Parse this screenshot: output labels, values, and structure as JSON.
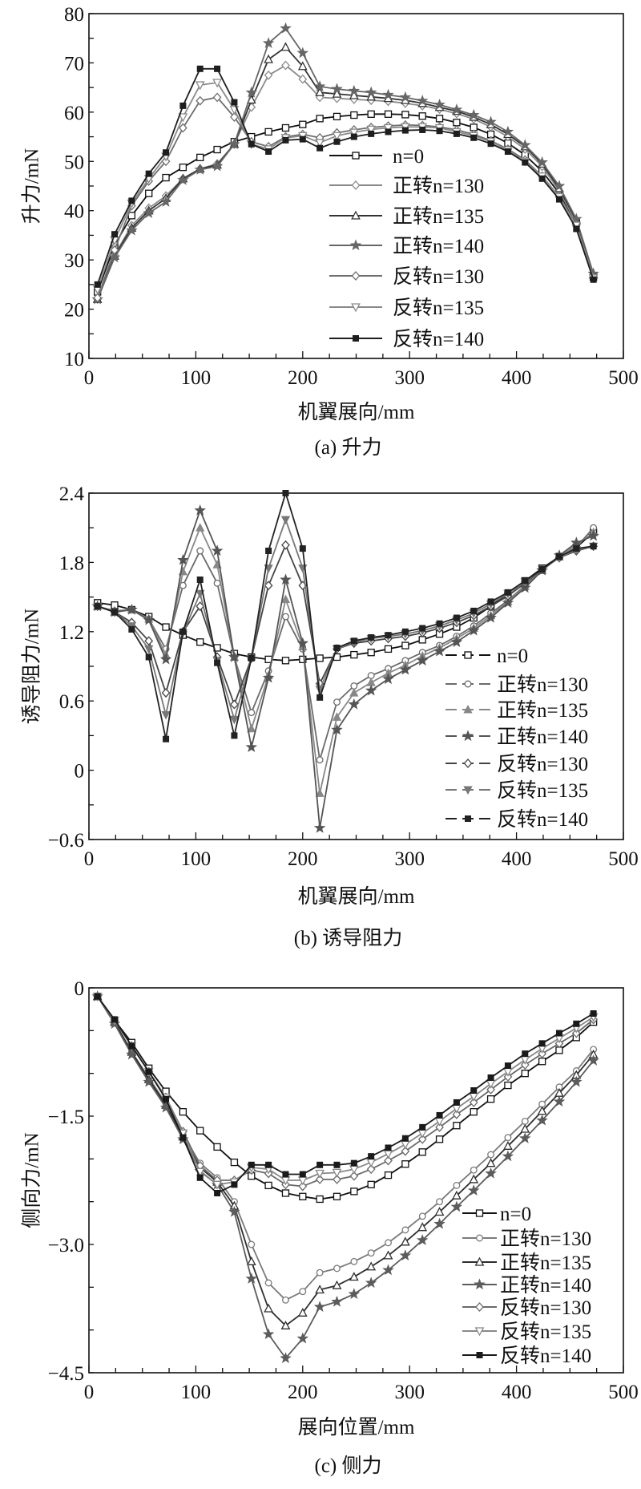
{
  "chart_data": [
    {
      "type": "line",
      "caption": "(a) 升力",
      "xlabel": "机翼展向/mm",
      "ylabel": "升力/mN",
      "xlim": [
        0,
        500
      ],
      "ylim": [
        10,
        80
      ],
      "xticks": [
        "0",
        "100",
        "200",
        "300",
        "400",
        "500"
      ],
      "yticks": [
        "10",
        "20",
        "30",
        "40",
        "50",
        "60",
        "70",
        "80"
      ],
      "legend_position": "center-right",
      "x": [
        8,
        24,
        40,
        56,
        72,
        88,
        104,
        120,
        136,
        152,
        168,
        184,
        200,
        216,
        232,
        248,
        264,
        280,
        296,
        312,
        328,
        344,
        360,
        376,
        392,
        408,
        424,
        440,
        456,
        472
      ],
      "series": [
        {
          "name": "n=0",
          "color": "#111111",
          "marker": "square",
          "values": [
            23.5,
            33,
            39,
            43.5,
            46.7,
            48.8,
            50.8,
            52.4,
            54,
            55,
            56,
            56.8,
            57.5,
            58.7,
            59.1,
            59.4,
            59.6,
            59.6,
            59.5,
            59.2,
            58.7,
            57.9,
            56.9,
            55.5,
            53.7,
            51.3,
            48,
            43.5,
            37.5,
            26.5
          ]
        },
        {
          "name": "正转n=130",
          "color": "#8a8a8a",
          "marker": "diamond",
          "values": [
            22,
            31,
            37,
            40.5,
            43,
            46.5,
            48.5,
            49.5,
            53.5,
            61,
            67.5,
            69.5,
            66.7,
            63,
            62.8,
            62.6,
            62.4,
            62.2,
            61.8,
            61.3,
            60.6,
            59.7,
            58.6,
            57,
            55,
            52.5,
            49,
            44,
            37.5,
            26.8
          ]
        },
        {
          "name": "正转n=135",
          "color": "#333333",
          "marker": "triangle",
          "values": [
            22,
            30.8,
            36.5,
            40,
            42.5,
            46.5,
            48.5,
            49.3,
            53.5,
            62.5,
            70.7,
            73.2,
            69.3,
            64,
            63.7,
            63.4,
            63.1,
            62.8,
            62.4,
            61.8,
            61,
            60.2,
            59,
            57.5,
            55.5,
            53,
            49.5,
            44.5,
            38,
            27
          ]
        },
        {
          "name": "正转n=140",
          "color": "#666666",
          "marker": "star",
          "values": [
            22,
            30.5,
            36,
            39.5,
            41.8,
            46.2,
            48.3,
            49,
            53.5,
            64,
            74,
            77,
            72,
            65.2,
            64.7,
            64.3,
            64,
            63.5,
            63,
            62.3,
            61.5,
            60.5,
            59.4,
            58,
            56,
            53.3,
            49.8,
            45,
            38.3,
            27.2
          ]
        },
        {
          "name": "反转n=130",
          "color": "#6e6e6e",
          "marker": "diamond",
          "values": [
            22.3,
            32,
            41,
            46,
            50,
            56.8,
            62.3,
            63,
            59,
            54,
            53,
            55,
            55.5,
            54.8,
            55.8,
            56.4,
            56.9,
            57.2,
            57.4,
            57.3,
            57,
            56.4,
            55.5,
            54.2,
            52.5,
            50.3,
            47,
            42.8,
            37,
            26.5
          ]
        },
        {
          "name": "反转n=135",
          "color": "#8a8a8a",
          "marker": "down-triangle",
          "values": [
            24,
            34,
            41.5,
            46.5,
            51,
            59,
            65.5,
            66,
            60.5,
            53.5,
            52.5,
            54.8,
            55.2,
            53.8,
            55.2,
            55.9,
            56.5,
            56.8,
            57,
            57,
            56.8,
            56,
            55.2,
            54,
            52.3,
            50,
            47,
            42.8,
            37,
            26.3
          ]
        },
        {
          "name": "反转n=140",
          "color": "#1e1e1e",
          "marker": "x-square",
          "values": [
            25,
            35.2,
            42,
            47.5,
            51.8,
            61.3,
            68.8,
            68.8,
            62,
            53.5,
            52,
            54.3,
            54.5,
            52.7,
            54,
            55,
            55.6,
            56,
            56.3,
            56.4,
            56.2,
            55.6,
            54.8,
            53.6,
            52,
            49.8,
            46.5,
            42.3,
            36.3,
            26
          ]
        }
      ]
    },
    {
      "type": "line",
      "caption": "(b) 诱导阻力",
      "xlabel": "机翼展向/mm",
      "ylabel": "诱导阻力/mN",
      "xlim": [
        0,
        500
      ],
      "ylim": [
        -0.6,
        2.4
      ],
      "xticks": [
        "0",
        "100",
        "200",
        "300",
        "400",
        "500"
      ],
      "yticks": [
        "−0.6",
        "0",
        "0.6",
        "1.2",
        "1.8",
        "2.4"
      ],
      "legend_position": "bottom-right",
      "x": [
        8,
        24,
        40,
        56,
        72,
        88,
        104,
        120,
        136,
        152,
        168,
        184,
        200,
        216,
        232,
        248,
        264,
        280,
        296,
        312,
        328,
        344,
        360,
        376,
        392,
        408,
        424,
        440,
        456,
        472
      ],
      "series": [
        {
          "name": "n=0",
          "color": "#111111",
          "marker": "square",
          "values": [
            1.45,
            1.43,
            1.39,
            1.33,
            1.24,
            1.17,
            1.11,
            1.06,
            1.01,
            0.98,
            0.96,
            0.95,
            0.96,
            0.97,
            0.98,
            1.0,
            1.02,
            1.05,
            1.08,
            1.13,
            1.18,
            1.24,
            1.32,
            1.42,
            1.53,
            1.64,
            1.75,
            1.85,
            1.93,
            2.06
          ]
        },
        {
          "name": "正转n=130",
          "color": "#6a6a6a",
          "marker": "circle",
          "values": [
            1.42,
            1.38,
            1.39,
            1.31,
            1.05,
            1.6,
            1.9,
            1.62,
            0.98,
            0.5,
            0.86,
            1.33,
            1.05,
            0.09,
            0.59,
            0.73,
            0.82,
            0.88,
            0.95,
            1.02,
            1.08,
            1.16,
            1.25,
            1.36,
            1.47,
            1.6,
            1.73,
            1.85,
            1.93,
            2.1
          ]
        },
        {
          "name": "正转n=135",
          "color": "#888888",
          "marker": "triangle-filled",
          "values": [
            1.42,
            1.37,
            1.39,
            1.31,
            1.0,
            1.72,
            2.1,
            1.78,
            0.98,
            0.36,
            0.82,
            1.48,
            1.07,
            -0.2,
            0.46,
            0.67,
            0.76,
            0.84,
            0.91,
            0.99,
            1.06,
            1.14,
            1.23,
            1.34,
            1.46,
            1.59,
            1.73,
            1.85,
            1.95,
            2.06
          ]
        },
        {
          "name": "正转n=140",
          "color": "#555555",
          "marker": "star",
          "values": [
            1.42,
            1.37,
            1.39,
            1.3,
            0.96,
            1.82,
            2.25,
            1.9,
            0.98,
            0.2,
            0.8,
            1.65,
            1.1,
            -0.5,
            0.35,
            0.57,
            0.69,
            0.79,
            0.87,
            0.95,
            1.03,
            1.11,
            1.21,
            1.32,
            1.45,
            1.58,
            1.73,
            1.86,
            1.97,
            2.03
          ]
        },
        {
          "name": "反转n=130",
          "color": "#444444",
          "marker": "diamond",
          "values": [
            1.42,
            1.37,
            1.28,
            1.12,
            0.67,
            1.2,
            1.42,
            0.98,
            0.57,
            0.97,
            1.6,
            1.95,
            1.6,
            0.75,
            1.05,
            1.1,
            1.12,
            1.14,
            1.16,
            1.19,
            1.23,
            1.28,
            1.34,
            1.42,
            1.51,
            1.62,
            1.74,
            1.84,
            1.9,
            1.94
          ]
        },
        {
          "name": "反转n=135",
          "color": "#777777",
          "marker": "down-triangle-filled",
          "values": [
            1.42,
            1.37,
            1.25,
            1.05,
            0.48,
            1.19,
            1.53,
            0.95,
            0.44,
            0.97,
            1.75,
            2.17,
            1.75,
            0.7,
            1.05,
            1.11,
            1.14,
            1.16,
            1.18,
            1.21,
            1.25,
            1.3,
            1.36,
            1.44,
            1.53,
            1.63,
            1.74,
            1.84,
            1.91,
            1.94
          ]
        },
        {
          "name": "反转n=140",
          "color": "#222222",
          "marker": "x-square",
          "values": [
            1.42,
            1.37,
            1.22,
            0.98,
            0.27,
            1.2,
            1.65,
            0.93,
            0.3,
            0.97,
            1.9,
            2.4,
            1.92,
            0.63,
            1.06,
            1.12,
            1.15,
            1.17,
            1.2,
            1.23,
            1.27,
            1.32,
            1.38,
            1.46,
            1.54,
            1.64,
            1.74,
            1.85,
            1.92,
            1.94
          ]
        }
      ]
    },
    {
      "type": "line",
      "caption": "(c) 侧力",
      "xlabel": "展向位置/mm",
      "ylabel": "侧向力/mN",
      "xlim": [
        0,
        500
      ],
      "ylim": [
        -4.5,
        0
      ],
      "xticks": [
        "0",
        "100",
        "200",
        "300",
        "400",
        "500"
      ],
      "yticks": [
        "−4.5",
        "−3.0",
        "−1.5",
        "0"
      ],
      "legend_position": "bottom-right",
      "x": [
        8,
        24,
        40,
        56,
        72,
        88,
        104,
        120,
        136,
        152,
        168,
        184,
        200,
        216,
        232,
        248,
        264,
        280,
        296,
        312,
        328,
        344,
        360,
        376,
        392,
        408,
        424,
        440,
        456,
        472
      ],
      "series": [
        {
          "name": "n=0",
          "color": "#111111",
          "marker": "square",
          "values": [
            -0.1,
            -0.38,
            -0.64,
            -0.94,
            -1.21,
            -1.45,
            -1.67,
            -1.86,
            -2.04,
            -2.2,
            -2.31,
            -2.4,
            -2.44,
            -2.47,
            -2.44,
            -2.38,
            -2.3,
            -2.19,
            -2.06,
            -1.92,
            -1.77,
            -1.61,
            -1.45,
            -1.3,
            -1.14,
            -1.0,
            -0.86,
            -0.73,
            -0.58,
            -0.4
          ]
        },
        {
          "name": "正转n=130",
          "color": "#7a7a7a",
          "marker": "circle",
          "values": [
            -0.1,
            -0.4,
            -0.75,
            -1.05,
            -1.35,
            -1.72,
            -2.05,
            -2.22,
            -2.5,
            -3.0,
            -3.45,
            -3.65,
            -3.55,
            -3.33,
            -3.28,
            -3.2,
            -3.1,
            -2.98,
            -2.83,
            -2.67,
            -2.5,
            -2.31,
            -2.13,
            -1.95,
            -1.75,
            -1.56,
            -1.36,
            -1.16,
            -0.97,
            -0.72
          ]
        },
        {
          "name": "正转n=135",
          "color": "#2e2e2e",
          "marker": "triangle",
          "values": [
            -0.1,
            -0.4,
            -0.75,
            -1.07,
            -1.37,
            -1.74,
            -2.1,
            -2.27,
            -2.55,
            -3.2,
            -3.75,
            -3.95,
            -3.8,
            -3.53,
            -3.48,
            -3.38,
            -3.26,
            -3.13,
            -2.97,
            -2.8,
            -2.62,
            -2.43,
            -2.24,
            -2.05,
            -1.85,
            -1.65,
            -1.44,
            -1.23,
            -1.02,
            -0.78
          ]
        },
        {
          "name": "正转n=140",
          "color": "#5c5c5c",
          "marker": "star",
          "values": [
            -0.1,
            -0.42,
            -0.78,
            -1.1,
            -1.4,
            -1.77,
            -2.14,
            -2.3,
            -2.62,
            -3.4,
            -4.05,
            -4.33,
            -4.1,
            -3.73,
            -3.67,
            -3.58,
            -3.45,
            -3.3,
            -3.13,
            -2.95,
            -2.76,
            -2.56,
            -2.37,
            -2.17,
            -1.97,
            -1.76,
            -1.55,
            -1.33,
            -1.1,
            -0.85
          ]
        },
        {
          "name": "反转n=130",
          "color": "#6a6a6a",
          "marker": "diamond",
          "values": [
            -0.1,
            -0.38,
            -0.68,
            -0.98,
            -1.28,
            -1.68,
            -2.08,
            -2.25,
            -2.25,
            -2.13,
            -2.17,
            -2.3,
            -2.32,
            -2.24,
            -2.24,
            -2.2,
            -2.12,
            -2.02,
            -1.91,
            -1.77,
            -1.63,
            -1.48,
            -1.34,
            -1.19,
            -1.04,
            -0.9,
            -0.77,
            -0.65,
            -0.53,
            -0.37
          ]
        },
        {
          "name": "反转n=135",
          "color": "#888888",
          "marker": "down-triangle",
          "values": [
            -0.1,
            -0.38,
            -0.68,
            -0.98,
            -1.28,
            -1.7,
            -2.15,
            -2.3,
            -2.27,
            -2.1,
            -2.12,
            -2.25,
            -2.25,
            -2.17,
            -2.16,
            -2.12,
            -2.04,
            -1.94,
            -1.83,
            -1.7,
            -1.56,
            -1.41,
            -1.27,
            -1.12,
            -0.98,
            -0.84,
            -0.71,
            -0.59,
            -0.47,
            -0.34
          ]
        },
        {
          "name": "反转n=140",
          "color": "#1a1a1a",
          "marker": "x-square",
          "values": [
            -0.1,
            -0.37,
            -0.68,
            -0.98,
            -1.3,
            -1.75,
            -2.22,
            -2.4,
            -2.3,
            -2.07,
            -2.07,
            -2.18,
            -2.18,
            -2.07,
            -2.07,
            -2.05,
            -1.97,
            -1.87,
            -1.76,
            -1.63,
            -1.49,
            -1.34,
            -1.2,
            -1.05,
            -0.91,
            -0.77,
            -0.65,
            -0.53,
            -0.42,
            -0.3
          ]
        }
      ]
    }
  ]
}
